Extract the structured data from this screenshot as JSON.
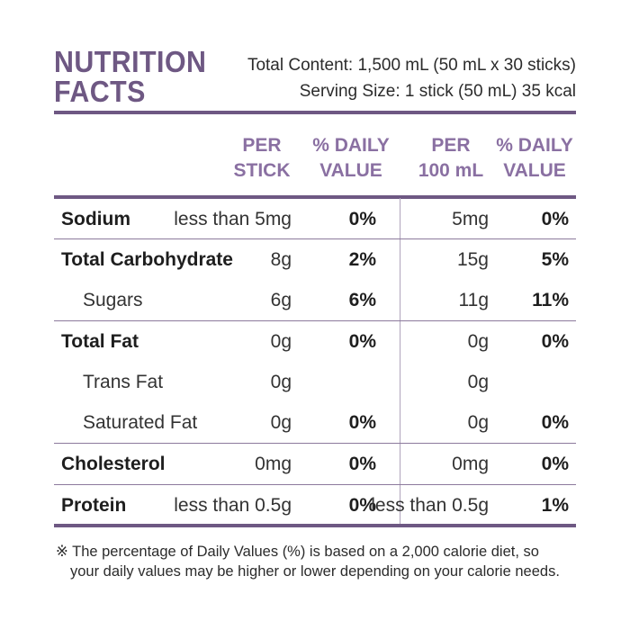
{
  "header": {
    "title_line1": "NUTRITION",
    "title_line2": "FACTS",
    "total_content": "Total Content: 1,500 mL (50 mL x 30 sticks)",
    "serving_size": "Serving Size: 1 stick (50 mL) 35 kcal"
  },
  "columns": {
    "per_stick_l1": "PER",
    "per_stick_l2": "STICK",
    "dv1_l1": "% DAILY",
    "dv1_l2": "VALUE",
    "per_100_l1": "PER",
    "per_100_l2": "100 mL",
    "dv2_l1": "% DAILY",
    "dv2_l2": "VALUE"
  },
  "rows": [
    {
      "name": "Sodium",
      "per_stick": "less than 5mg",
      "dv_stick": "0%",
      "per_100": "5mg",
      "dv_100": "0%"
    },
    {
      "name": "Total Carbohydrate",
      "per_stick": "8g",
      "dv_stick": "2%",
      "per_100": "15g",
      "dv_100": "5%"
    },
    {
      "name": "Sugars",
      "per_stick": "6g",
      "dv_stick": "6%",
      "per_100": "11g",
      "dv_100": "11%"
    },
    {
      "name": "Total Fat",
      "per_stick": "0g",
      "dv_stick": "0%",
      "per_100": "0g",
      "dv_100": "0%"
    },
    {
      "name": "Trans Fat",
      "per_stick": "0g",
      "dv_stick": "",
      "per_100": "0g",
      "dv_100": ""
    },
    {
      "name": "Saturated Fat",
      "per_stick": "0g",
      "dv_stick": "0%",
      "per_100": "0g",
      "dv_100": "0%"
    },
    {
      "name": "Cholesterol",
      "per_stick": "0mg",
      "dv_stick": "0%",
      "per_100": "0mg",
      "dv_100": "0%"
    },
    {
      "name": "Protein",
      "per_stick": "less than 0.5g",
      "dv_stick": "0%",
      "per_100": "less than 0.5g",
      "dv_100": "1%"
    }
  ],
  "footnote": {
    "line1": "※ The percentage of Daily Values (%) is based on a 2,000 calorie diet, so",
    "line2": "your daily values may be higher or lower depending on your calorie needs."
  },
  "colors": {
    "accent": "#6e5883",
    "header_text": "#8a70a2"
  }
}
